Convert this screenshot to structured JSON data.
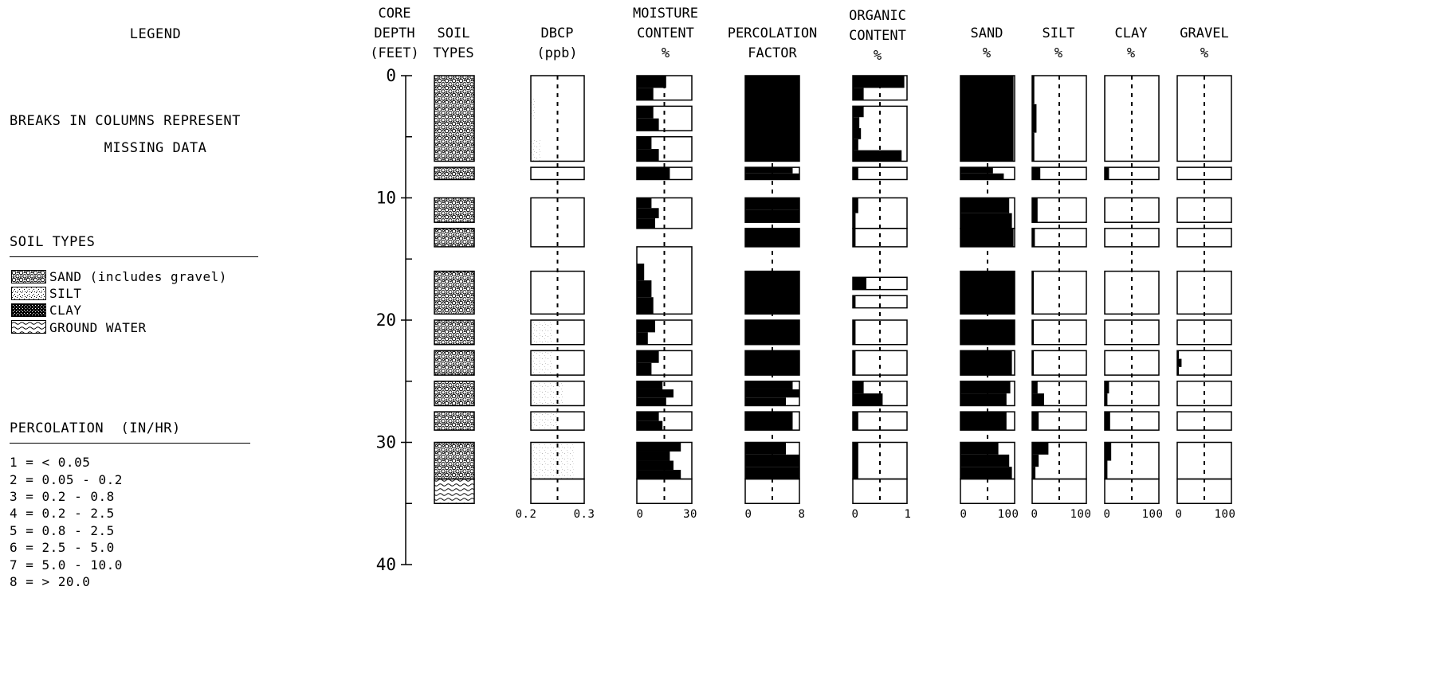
{
  "legend": {
    "title": "LEGEND",
    "note_line1": "BREAKS IN COLUMNS REPRESENT",
    "note_line2": "MISSING DATA",
    "soil_types_title": "SOIL TYPES",
    "soil_types": [
      {
        "label": "SAND (includes gravel)",
        "pattern": "sand"
      },
      {
        "label": "SILT",
        "pattern": "silt"
      },
      {
        "label": "CLAY",
        "pattern": "clay"
      },
      {
        "label": "GROUND WATER",
        "pattern": "water"
      }
    ],
    "percolation_title": "PERCOLATION  (IN/HR)",
    "percolation_classes": [
      "1 = < 0.05",
      "2 = 0.05 - 0.2",
      "3 = 0.2 - 0.8",
      "4 = 0.2 - 2.5",
      "5 = 0.8 - 2.5",
      "6 = 2.5 - 5.0",
      "7 = 5.0 - 10.0",
      "8 = > 20.0"
    ]
  },
  "columns": {
    "depth": {
      "line1": "CORE",
      "line2": "DEPTH",
      "line3": "(FEET)"
    },
    "soil": {
      "line1": "SOIL",
      "line2": "TYPES"
    },
    "dbcp": {
      "line1": "DBCP",
      "line2": "(ppb)",
      "tick_min": "0.2",
      "tick_max": "0.3"
    },
    "moisture": {
      "line1": "MOISTURE",
      "line2": "CONTENT",
      "line3": "%",
      "tick_min": "0",
      "tick_max": "30"
    },
    "percolation": {
      "line1": "PERCOLATION",
      "line2": "FACTOR",
      "tick_min": "0",
      "tick_max": "8"
    },
    "organic": {
      "line1": "ORGANIC",
      "line2": "CONTENT",
      "line3": "%",
      "tick_min": "0",
      "tick_max": "1"
    },
    "sand": {
      "line1": "SAND",
      "line2": "%",
      "tick_min": "0",
      "tick_max": "100"
    },
    "silt": {
      "line1": "SILT",
      "line2": "%",
      "tick_min": "0",
      "tick_max": "100"
    },
    "clay": {
      "line1": "CLAY",
      "line2": "%",
      "tick_min": "0",
      "tick_max": "100"
    },
    "gravel": {
      "line1": "GRAVEL",
      "line2": "%",
      "tick_min": "0",
      "tick_max": "100"
    }
  },
  "chart_data": {
    "type": "strip-log",
    "depth_axis": {
      "range": [
        0,
        40
      ],
      "ticks": [
        "0",
        "10",
        "20",
        "30",
        "40"
      ],
      "tick_values": [
        0,
        10,
        20,
        30,
        40
      ]
    },
    "soil_profile": [
      {
        "from": 0,
        "to": 7,
        "type": "sand"
      },
      {
        "from": 7.5,
        "to": 8.5,
        "type": "sand"
      },
      {
        "from": 10,
        "to": 12,
        "type": "sand"
      },
      {
        "from": 12.5,
        "to": 14,
        "type": "sand"
      },
      {
        "from": 16,
        "to": 19.5,
        "type": "sand"
      },
      {
        "from": 20,
        "to": 22,
        "type": "sand"
      },
      {
        "from": 22.5,
        "to": 24.5,
        "type": "sand"
      },
      {
        "from": 25,
        "to": 27,
        "type": "sand"
      },
      {
        "from": 27.5,
        "to": 29,
        "type": "sand"
      },
      {
        "from": 30,
        "to": 33,
        "type": "sand"
      },
      {
        "from": 33,
        "to": 35,
        "type": "water"
      }
    ],
    "series": [
      {
        "key": "dbcp",
        "range": [
          0.2,
          0.3
        ],
        "reference": 0.25,
        "fill": "stipple",
        "segments": [
          {
            "from": 0,
            "to": 7,
            "values": [
              0.2,
              0.21,
              0.2,
              0.22
            ]
          },
          {
            "from": 7.5,
            "to": 8.5,
            "values": [
              0.2
            ]
          },
          {
            "from": 10,
            "to": 14,
            "values": [
              0.2
            ]
          },
          {
            "from": 16,
            "to": 19.5,
            "values": [
              0.2
            ]
          },
          {
            "from": 20,
            "to": 22,
            "values": [
              0.24
            ]
          },
          {
            "from": 22.5,
            "to": 24.5,
            "values": [
              0.24
            ]
          },
          {
            "from": 25,
            "to": 27,
            "values": [
              0.26
            ]
          },
          {
            "from": 27.5,
            "to": 29,
            "values": [
              0.25
            ]
          },
          {
            "from": 30,
            "to": 33,
            "values": [
              0.28
            ]
          },
          {
            "from": 33,
            "to": 35,
            "values": [
              0.2
            ]
          }
        ]
      },
      {
        "key": "moisture",
        "range": [
          0,
          30
        ],
        "reference": 15,
        "segments": [
          {
            "from": 0,
            "to": 2,
            "values": [
              16,
              9
            ]
          },
          {
            "from": 2.5,
            "to": 4.5,
            "values": [
              9,
              12
            ]
          },
          {
            "from": 5,
            "to": 7,
            "values": [
              8,
              12
            ]
          },
          {
            "from": 7.5,
            "to": 8.5,
            "values": [
              18
            ]
          },
          {
            "from": 10,
            "to": 12.5,
            "values": [
              8,
              12,
              10
            ]
          },
          {
            "from": 14,
            "to": 19.5,
            "values": [
              0,
              4,
              8,
              9
            ]
          },
          {
            "from": 20,
            "to": 22,
            "values": [
              10,
              6
            ]
          },
          {
            "from": 22.5,
            "to": 24.5,
            "values": [
              12,
              8
            ]
          },
          {
            "from": 25,
            "to": 27,
            "values": [
              14,
              20,
              16
            ]
          },
          {
            "from": 27.5,
            "to": 29,
            "values": [
              12,
              14
            ]
          },
          {
            "from": 30,
            "to": 33,
            "values": [
              24,
              18,
              20,
              24
            ]
          },
          {
            "from": 33,
            "to": 35,
            "values": [
              0
            ]
          }
        ]
      },
      {
        "key": "percolation",
        "range": [
          0,
          8
        ],
        "reference": 4,
        "segments": [
          {
            "from": 0,
            "to": 7,
            "values": [
              8
            ]
          },
          {
            "from": 7.5,
            "to": 8.5,
            "values": [
              7,
              8
            ]
          },
          {
            "from": 10,
            "to": 12,
            "values": [
              8,
              8
            ]
          },
          {
            "from": 12.5,
            "to": 14,
            "values": [
              8
            ]
          },
          {
            "from": 16,
            "to": 19.5,
            "values": [
              8
            ]
          },
          {
            "from": 20,
            "to": 22,
            "values": [
              8
            ]
          },
          {
            "from": 22.5,
            "to": 24.5,
            "values": [
              8
            ]
          },
          {
            "from": 25,
            "to": 27,
            "values": [
              7,
              8,
              6
            ]
          },
          {
            "from": 27.5,
            "to": 29,
            "values": [
              7
            ]
          },
          {
            "from": 30,
            "to": 33,
            "values": [
              6,
              8,
              8
            ]
          },
          {
            "from": 33,
            "to": 35,
            "values": [
              0
            ]
          }
        ]
      },
      {
        "key": "organic",
        "range": [
          0,
          1
        ],
        "reference": 0.5,
        "segments": [
          {
            "from": 0,
            "to": 2,
            "values": [
              0.95,
              0.2
            ]
          },
          {
            "from": 2.5,
            "to": 7,
            "values": [
              0.2,
              0.12,
              0.15,
              0.1,
              0.9
            ]
          },
          {
            "from": 7.5,
            "to": 8.5,
            "values": [
              0.1
            ]
          },
          {
            "from": 10,
            "to": 12.5,
            "values": [
              0.1,
              0.05
            ]
          },
          {
            "from": 12.5,
            "to": 14,
            "values": [
              0.05
            ]
          },
          {
            "from": 16.5,
            "to": 17.5,
            "values": [
              0.25
            ]
          },
          {
            "from": 18,
            "to": 19,
            "values": [
              0.05
            ]
          },
          {
            "from": 20,
            "to": 22,
            "values": [
              0.05
            ]
          },
          {
            "from": 22.5,
            "to": 24.5,
            "values": [
              0.05
            ]
          },
          {
            "from": 25,
            "to": 27,
            "values": [
              0.2,
              0.55
            ]
          },
          {
            "from": 27.5,
            "to": 29,
            "values": [
              0.1
            ]
          },
          {
            "from": 30,
            "to": 33,
            "values": [
              0.1
            ]
          },
          {
            "from": 33,
            "to": 35,
            "values": [
              0
            ]
          }
        ]
      },
      {
        "key": "sand",
        "range": [
          0,
          100
        ],
        "reference": 50,
        "segments": [
          {
            "from": 0,
            "to": 7,
            "values": [
              98
            ]
          },
          {
            "from": 7.5,
            "to": 8.5,
            "values": [
              60,
              80
            ]
          },
          {
            "from": 10,
            "to": 12.5,
            "values": [
              90,
              95
            ]
          },
          {
            "from": 12.5,
            "to": 14,
            "values": [
              98
            ]
          },
          {
            "from": 16,
            "to": 19.5,
            "values": [
              100
            ]
          },
          {
            "from": 20,
            "to": 22,
            "values": [
              100
            ]
          },
          {
            "from": 22.5,
            "to": 24.5,
            "values": [
              95
            ]
          },
          {
            "from": 25,
            "to": 27,
            "values": [
              92,
              85
            ]
          },
          {
            "from": 27.5,
            "to": 29,
            "values": [
              85
            ]
          },
          {
            "from": 30,
            "to": 33,
            "values": [
              70,
              90,
              95
            ]
          },
          {
            "from": 33,
            "to": 35,
            "values": [
              0
            ]
          }
        ]
      },
      {
        "key": "silt",
        "range": [
          0,
          100
        ],
        "reference": 50,
        "segments": [
          {
            "from": 0,
            "to": 7,
            "values": [
              4,
              8,
              4
            ]
          },
          {
            "from": 7.5,
            "to": 8.5,
            "values": [
              15
            ]
          },
          {
            "from": 10,
            "to": 12,
            "values": [
              10
            ]
          },
          {
            "from": 12.5,
            "to": 14,
            "values": [
              5
            ]
          },
          {
            "from": 16,
            "to": 19.5,
            "values": [
              3
            ]
          },
          {
            "from": 20,
            "to": 22,
            "values": [
              3
            ]
          },
          {
            "from": 22.5,
            "to": 24.5,
            "values": [
              3
            ]
          },
          {
            "from": 25,
            "to": 27,
            "values": [
              10,
              22
            ]
          },
          {
            "from": 27.5,
            "to": 29,
            "values": [
              12
            ]
          },
          {
            "from": 30,
            "to": 33,
            "values": [
              30,
              12,
              6
            ]
          },
          {
            "from": 33,
            "to": 35,
            "values": [
              0
            ]
          }
        ]
      },
      {
        "key": "clay",
        "range": [
          0,
          100
        ],
        "reference": 50,
        "segments": [
          {
            "from": 0,
            "to": 7,
            "values": [
              1
            ]
          },
          {
            "from": 7.5,
            "to": 8.5,
            "values": [
              8
            ]
          },
          {
            "from": 10,
            "to": 12,
            "values": [
              1
            ]
          },
          {
            "from": 12.5,
            "to": 14,
            "values": [
              1
            ]
          },
          {
            "from": 16,
            "to": 19.5,
            "values": [
              1
            ]
          },
          {
            "from": 20,
            "to": 22,
            "values": [
              1
            ]
          },
          {
            "from": 22.5,
            "to": 24.5,
            "values": [
              1
            ]
          },
          {
            "from": 25,
            "to": 27,
            "values": [
              8,
              5
            ]
          },
          {
            "from": 27.5,
            "to": 29,
            "values": [
              10
            ]
          },
          {
            "from": 30,
            "to": 33,
            "values": [
              12,
              5
            ]
          },
          {
            "from": 33,
            "to": 35,
            "values": [
              0
            ]
          }
        ]
      },
      {
        "key": "gravel",
        "range": [
          0,
          100
        ],
        "reference": 50,
        "segments": [
          {
            "from": 0,
            "to": 7,
            "values": [
              0
            ]
          },
          {
            "from": 7.5,
            "to": 8.5,
            "values": [
              0
            ]
          },
          {
            "from": 10,
            "to": 12,
            "values": [
              0
            ]
          },
          {
            "from": 12.5,
            "to": 14,
            "values": [
              0
            ]
          },
          {
            "from": 16,
            "to": 19.5,
            "values": [
              0
            ]
          },
          {
            "from": 20,
            "to": 22,
            "values": [
              0
            ]
          },
          {
            "from": 22.5,
            "to": 24.5,
            "values": [
              3,
              8,
              3
            ]
          },
          {
            "from": 25,
            "to": 27,
            "values": [
              0
            ]
          },
          {
            "from": 27.5,
            "to": 29,
            "values": [
              0
            ]
          },
          {
            "from": 30,
            "to": 33,
            "values": [
              0
            ]
          },
          {
            "from": 33,
            "to": 35,
            "values": [
              0
            ]
          }
        ]
      }
    ]
  }
}
